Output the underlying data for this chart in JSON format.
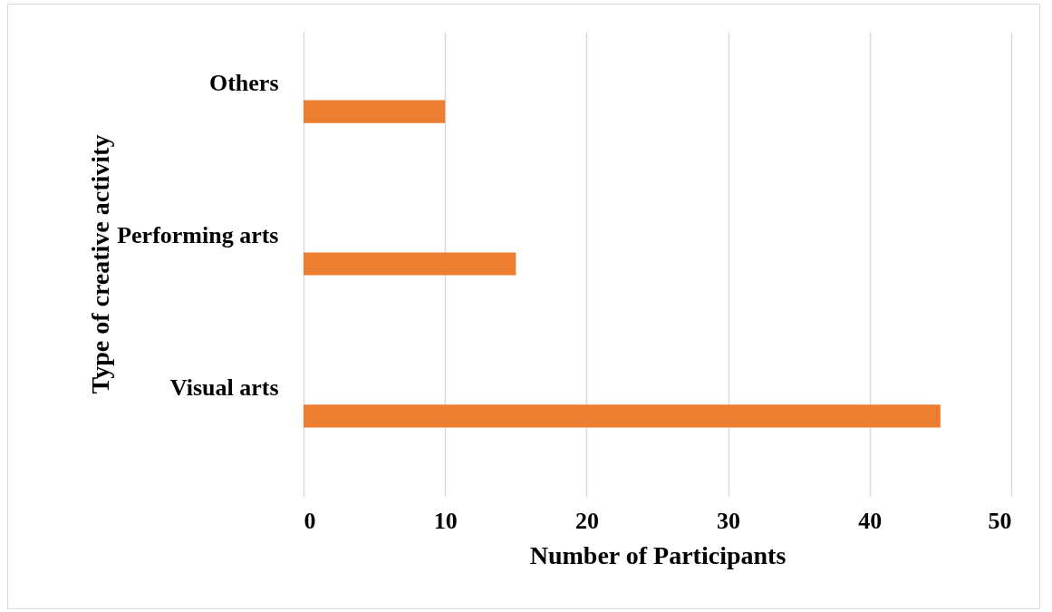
{
  "chart_data": {
    "type": "bar",
    "orientation": "horizontal",
    "xlabel": "Number of Participants",
    "ylabel": "Type of creative activity",
    "categories": [
      "Others",
      "Performing arts",
      "Visual arts"
    ],
    "values": [
      10,
      15,
      45
    ],
    "color": "#ed7d31",
    "xlim": [
      0,
      50
    ],
    "xticks": [
      0,
      10,
      20,
      30,
      40,
      50
    ],
    "grid": "x"
  }
}
